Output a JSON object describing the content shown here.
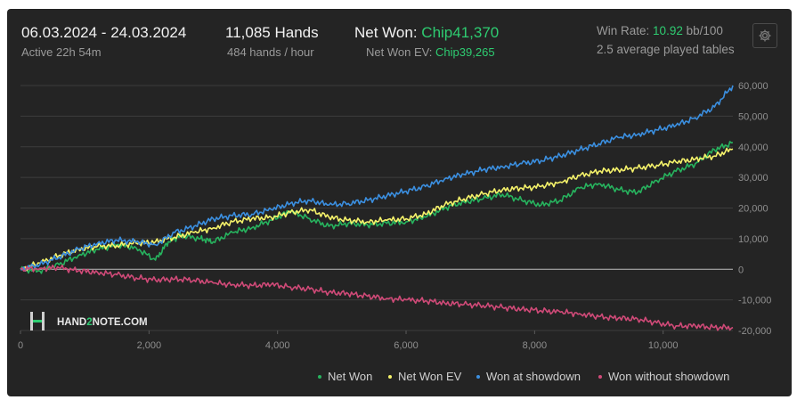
{
  "header": {
    "date_range": "06.03.2024 - 24.03.2024",
    "active": "Active 22h 54m",
    "hands": "11,085 Hands",
    "hands_per_hour": "484 hands / hour",
    "net_won_label": "Net Won:",
    "net_won_value": "Chip41,370",
    "net_won_ev_label": "Net Won  EV:",
    "net_won_ev_value": "Chip39,265",
    "win_rate_label": "Win Rate:",
    "win_rate_value": "10.92",
    "win_rate_unit": "bb/100",
    "avg_tables": "2.5 average played tables"
  },
  "settings_icon": "gear-icon",
  "watermark": {
    "prefix": "HAND",
    "mid": "2",
    "suffix": "NOTE.COM"
  },
  "colors": {
    "net_won": "#27b35e",
    "net_won_ev": "#f5f26a",
    "showdown": "#3b8fe0",
    "non_showdown": "#d04a78",
    "accent_green": "#2ecc71"
  },
  "chart_data": {
    "type": "line",
    "xlim": [
      0,
      11085
    ],
    "ylim": [
      -20000,
      60000
    ],
    "x_ticks": [
      0,
      2000,
      4000,
      6000,
      8000,
      10000
    ],
    "x_tick_labels": [
      "0",
      "2,000",
      "4,000",
      "6,000",
      "8,000",
      "10,000"
    ],
    "y_ticks": [
      60000,
      50000,
      40000,
      30000,
      20000,
      10000,
      0,
      -10000,
      -20000
    ],
    "y_tick_labels": [
      "60,000",
      "50,000",
      "40,000",
      "30,000",
      "20,000",
      "10,000",
      "0",
      "-10,000",
      "-20,000"
    ],
    "grid": true,
    "legend_position": "bottom-right",
    "series": [
      {
        "name": "Net Won",
        "color": "#27b35e",
        "x": [
          0,
          300,
          600,
          900,
          1200,
          1500,
          1800,
          2100,
          2300,
          2500,
          2800,
          3000,
          3300,
          3600,
          3900,
          4200,
          4500,
          4800,
          5100,
          5400,
          5700,
          6000,
          6300,
          6600,
          6900,
          7200,
          7500,
          7800,
          8100,
          8400,
          8700,
          9000,
          9300,
          9600,
          9900,
          10200,
          10500,
          10800,
          11085
        ],
        "y": [
          0,
          -500,
          1500,
          4500,
          6500,
          8000,
          7000,
          3000,
          9000,
          11000,
          10000,
          9000,
          12000,
          13500,
          16000,
          19000,
          16500,
          14000,
          15000,
          14500,
          15000,
          15500,
          17000,
          20000,
          22000,
          23000,
          24500,
          22500,
          21000,
          22500,
          26500,
          28000,
          26000,
          25000,
          29000,
          32000,
          34500,
          39000,
          41370
        ]
      },
      {
        "name": "Net Won  EV",
        "color": "#f5f26a",
        "x": [
          0,
          300,
          600,
          900,
          1200,
          1500,
          1800,
          2100,
          2400,
          2700,
          3000,
          3300,
          3600,
          3900,
          4200,
          4500,
          4800,
          5100,
          5400,
          5700,
          6000,
          6300,
          6600,
          6900,
          7200,
          7500,
          7800,
          8100,
          8400,
          8700,
          9000,
          9300,
          9600,
          9900,
          10200,
          10500,
          10800,
          11085
        ],
        "y": [
          0,
          2000,
          4500,
          6500,
          7500,
          7800,
          8500,
          9000,
          10500,
          12000,
          13500,
          15500,
          16500,
          17000,
          18500,
          19500,
          17000,
          16000,
          15500,
          16000,
          16500,
          18000,
          21000,
          23000,
          24500,
          26000,
          26500,
          27000,
          28500,
          30500,
          32000,
          32500,
          33000,
          34000,
          35000,
          36000,
          37000,
          39265
        ]
      },
      {
        "name": "Won at showdown",
        "color": "#3b8fe0",
        "x": [
          0,
          300,
          600,
          900,
          1200,
          1500,
          1800,
          2100,
          2400,
          2700,
          3000,
          3300,
          3600,
          3900,
          4200,
          4500,
          4800,
          5100,
          5400,
          5700,
          6000,
          6300,
          6600,
          6900,
          7200,
          7500,
          7800,
          8100,
          8400,
          8700,
          9000,
          9300,
          9600,
          9900,
          10200,
          10500,
          10800,
          11085
        ],
        "y": [
          0,
          1500,
          4000,
          6500,
          8500,
          9500,
          9000,
          8000,
          12000,
          14000,
          16500,
          17500,
          18000,
          19500,
          21500,
          22500,
          21000,
          21500,
          22500,
          24000,
          25500,
          27000,
          29500,
          31000,
          32500,
          33500,
          34500,
          35500,
          37000,
          39000,
          41000,
          43000,
          44000,
          45500,
          47000,
          49500,
          53000,
          60000
        ]
      },
      {
        "name": "Won without showdown",
        "color": "#d04a78",
        "x": [
          0,
          300,
          600,
          900,
          1200,
          1500,
          1800,
          2100,
          2400,
          2700,
          3000,
          3300,
          3600,
          3900,
          4200,
          4500,
          4800,
          5100,
          5400,
          5700,
          6000,
          6300,
          6600,
          6900,
          7200,
          7500,
          7800,
          8100,
          8400,
          8700,
          9000,
          9300,
          9600,
          9900,
          10200,
          10500,
          10800,
          11085
        ],
        "y": [
          0,
          300,
          500,
          -500,
          -1000,
          -1800,
          -2800,
          -3500,
          -3200,
          -3500,
          -4500,
          -5000,
          -5300,
          -5000,
          -5800,
          -6500,
          -7500,
          -8000,
          -8800,
          -9500,
          -10000,
          -10300,
          -11000,
          -11500,
          -11800,
          -12500,
          -13000,
          -13500,
          -14000,
          -14500,
          -15500,
          -16000,
          -16200,
          -17500,
          -18500,
          -18500,
          -19000,
          -19000
        ]
      }
    ]
  }
}
